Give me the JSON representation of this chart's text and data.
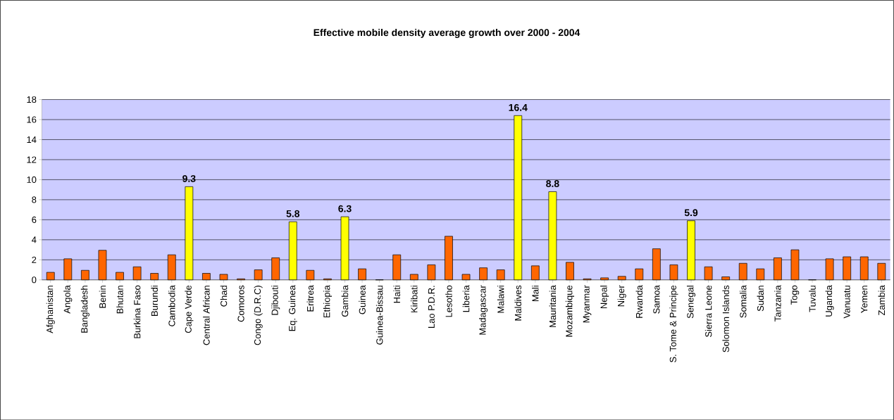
{
  "chart_data": {
    "type": "bar",
    "title": "Effective mobile density average growth over 2000 - 2004",
    "categories": [
      "Afghanistan",
      "Angola",
      "Bangladesh",
      "Benin",
      "Bhutan",
      "Burkina Faso",
      "Burundi",
      "Cambodia",
      "Cape Verde",
      "Central African",
      "Chad",
      "Comoros",
      "Congo (D.R.C)",
      "Djibouti",
      "Eq. Guinea",
      "Eritrea",
      "Ethiopia",
      "Gambia",
      "Guinea",
      "Guinea-Bissau",
      "Haiti",
      "Kiribati",
      "Lao P.D.R.",
      "Lesotho",
      "Liberia",
      "Madagascar",
      "Malawi",
      "Maldives",
      "Mali",
      "Mauritania",
      "Mozambique",
      "Myanmar",
      "Nepal",
      "Niger",
      "Rwanda",
      "Samoa",
      "S. Tome & Principe",
      "Senegal",
      "Sierra Leone",
      "Solomon Islands",
      "Somalia",
      "Sudan",
      "Tanzania",
      "Togo",
      "Tuvalu",
      "Uganda",
      "Vanuatu",
      "Yemen",
      "Zambia"
    ],
    "values": [
      0.75,
      2.1,
      0.95,
      2.95,
      0.75,
      1.3,
      0.65,
      2.5,
      9.3,
      0.65,
      0.55,
      0.1,
      1.0,
      2.2,
      5.8,
      0.95,
      0.1,
      6.3,
      1.1,
      0,
      2.5,
      0.55,
      1.5,
      4.35,
      0.55,
      1.2,
      1.0,
      16.4,
      1.4,
      8.8,
      1.75,
      0.1,
      0.2,
      0.35,
      1.1,
      3.1,
      1.5,
      5.9,
      1.3,
      0.3,
      1.65,
      1.1,
      2.2,
      3.0,
      0,
      2.1,
      2.3,
      2.3,
      1.65
    ],
    "colors": [
      "#ff6600",
      "#ff6600",
      "#ff6600",
      "#ff6600",
      "#ff6600",
      "#ff6600",
      "#ff6600",
      "#ff6600",
      "#ffff00",
      "#ff6600",
      "#ff6600",
      "#ff6600",
      "#ff6600",
      "#ff6600",
      "#ffff00",
      "#ff6600",
      "#ff6600",
      "#ffff00",
      "#ff6600",
      "#ff6600",
      "#ff6600",
      "#ff6600",
      "#ff6600",
      "#ff6600",
      "#ff6600",
      "#ff6600",
      "#ff6600",
      "#ffff00",
      "#ff6600",
      "#ffff00",
      "#ff6600",
      "#ff6600",
      "#ff6600",
      "#ff6600",
      "#ff6600",
      "#ff6600",
      "#ff6600",
      "#ffff00",
      "#ff6600",
      "#ff6600",
      "#ff6600",
      "#ff6600",
      "#ff6600",
      "#ff6600",
      "#ff6600",
      "#ff6600",
      "#ff6600",
      "#ff6600",
      "#ff6600"
    ],
    "value_labels": [
      null,
      null,
      null,
      null,
      null,
      null,
      null,
      null,
      "9.3",
      null,
      null,
      null,
      null,
      null,
      "5.8",
      null,
      null,
      "6.3",
      null,
      null,
      null,
      null,
      null,
      null,
      null,
      null,
      null,
      "16.4",
      null,
      "8.8",
      null,
      null,
      null,
      null,
      null,
      null,
      null,
      "5.9",
      null,
      null,
      null,
      null,
      null,
      null,
      null,
      null,
      null,
      null,
      null
    ],
    "ylim": [
      0,
      18
    ],
    "yticks": [
      0,
      2,
      4,
      6,
      8,
      10,
      12,
      14,
      16,
      18
    ],
    "grid": "y"
  }
}
